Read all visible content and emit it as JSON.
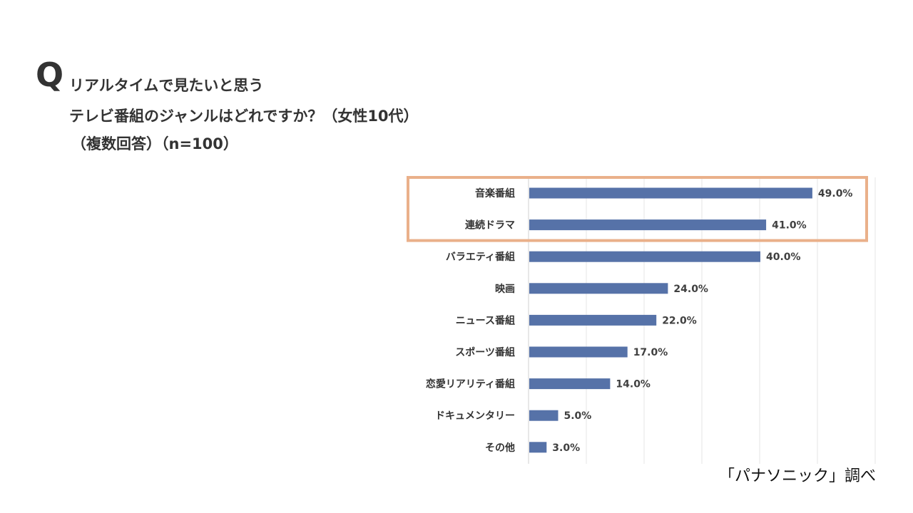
{
  "question": {
    "mark": "Q",
    "line1": "リアルタイムで見たいと思う",
    "line2": "テレビ番組のジャンルはどれですか？（女性10代）",
    "line3": "（複数回答）（n=100）"
  },
  "colors": {
    "bar": "#5672a8",
    "highlight": "#eab08a",
    "grid": "#e6e6e6"
  },
  "chart_data": {
    "type": "bar",
    "orientation": "horizontal",
    "title": "リアルタイムで見たいと思うテレビ番組のジャンルはどれですか？（女性10代）（複数回答）（n=100）",
    "categories": [
      "音楽番組",
      "連続ドラマ",
      "バラエティ番組",
      "映画",
      "ニュース番組",
      "スポーツ番組",
      "恋愛リアリティ番組",
      "ドキュメンタリー",
      "その他"
    ],
    "values": [
      49.0,
      41.0,
      40.0,
      24.0,
      22.0,
      17.0,
      14.0,
      5.0,
      3.0
    ],
    "value_labels": [
      "49.0%",
      "41.0%",
      "40.0%",
      "24.0%",
      "22.0%",
      "17.0%",
      "14.0%",
      "5.0%",
      "3.0%"
    ],
    "highlighted_categories": [
      "音楽番組",
      "連続ドラマ"
    ],
    "xlim": [
      0,
      60
    ],
    "grid": true
  },
  "source": "「パナソニック」調べ"
}
